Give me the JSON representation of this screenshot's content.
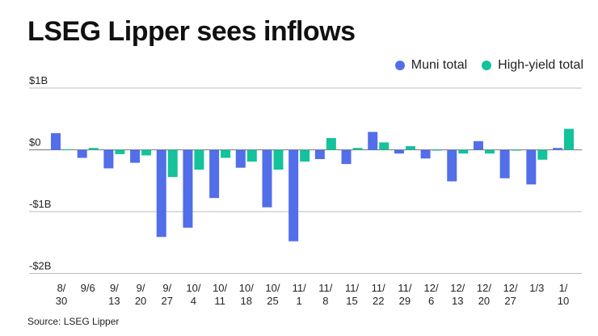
{
  "title": "LSEG Lipper sees inflows",
  "source": "Source: LSEG Lipper",
  "chart_data": {
    "type": "bar",
    "title": "LSEG Lipper sees inflows",
    "xlabel": "",
    "ylabel": "",
    "ylim": [
      -2,
      1
    ],
    "y_ticks": [
      1,
      0,
      -1,
      -2
    ],
    "y_tick_labels": [
      "$1B",
      "$0",
      "-$1B",
      "-$2B"
    ],
    "grid": true,
    "legend_position": "top-right",
    "categories": [
      "8/30",
      "9/6",
      "9/13",
      "9/20",
      "9/27",
      "10/4",
      "10/11",
      "10/18",
      "10/25",
      "11/1",
      "11/8",
      "11/15",
      "11/22",
      "11/29",
      "12/6",
      "12/13",
      "12/20",
      "12/27",
      "1/3",
      "1/10"
    ],
    "tick_labels": [
      [
        "8/",
        "30"
      ],
      [
        "9/6"
      ],
      [
        "9/",
        "13"
      ],
      [
        "9/",
        "20"
      ],
      [
        "9/",
        "27"
      ],
      [
        "10/",
        "4"
      ],
      [
        "10/",
        "11"
      ],
      [
        "10/",
        "18"
      ],
      [
        "10/",
        "25"
      ],
      [
        "11/",
        "1"
      ],
      [
        "11/",
        "8"
      ],
      [
        "11/",
        "15"
      ],
      [
        "11/",
        "22"
      ],
      [
        "11/",
        "29"
      ],
      [
        "12/",
        "6"
      ],
      [
        "12/",
        "13"
      ],
      [
        "12/",
        "20"
      ],
      [
        "12/",
        "27"
      ],
      [
        "1/3"
      ],
      [
        "1/",
        "10"
      ]
    ],
    "series": [
      {
        "name": "Muni total",
        "color": "#526ee8",
        "values": [
          0.27,
          -0.13,
          -0.3,
          -0.21,
          -1.41,
          -1.26,
          -0.78,
          -0.29,
          -0.93,
          -1.48,
          -0.15,
          -0.23,
          0.29,
          -0.06,
          -0.14,
          -0.51,
          0.14,
          -0.46,
          -0.56,
          0.03
        ]
      },
      {
        "name": "High-yield total",
        "color": "#14c29b",
        "values": [
          0.01,
          0.03,
          -0.07,
          -0.09,
          -0.44,
          -0.32,
          -0.13,
          -0.19,
          -0.32,
          -0.19,
          0.19,
          0.03,
          0.12,
          0.06,
          0.0,
          -0.06,
          -0.06,
          -0.01,
          -0.16,
          0.34
        ]
      }
    ]
  }
}
